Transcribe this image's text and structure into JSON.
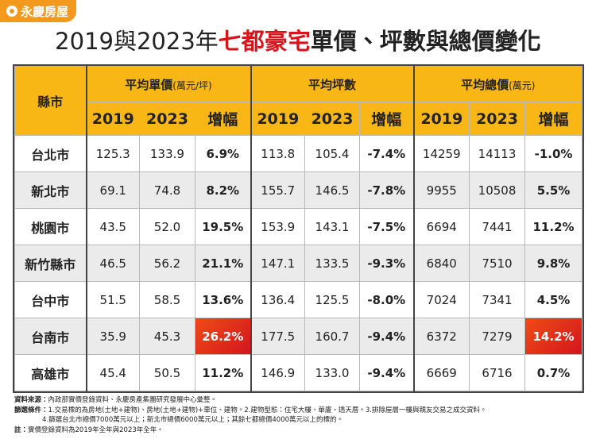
{
  "header": {
    "logo": "永慶房屋",
    "title": [
      "2019與2023年",
      "七都豪宅",
      "單價、坪數與總價變化"
    ]
  },
  "table": {
    "corner": "縣市",
    "groups": [
      {
        "name": "平均單價",
        "unit": "(萬元/坪)"
      },
      {
        "name": "平均坪數"
      },
      {
        "name": "平均總價",
        "unit": "(萬元)"
      }
    ],
    "subheaders": [
      "2019",
      "2023",
      "增幅",
      "2019",
      "2023",
      "增幅",
      "2019",
      "2023",
      "增幅"
    ],
    "rows": [
      {
        "city": "台北市",
        "values": [
          "125.3",
          "133.9",
          "6.9%",
          "113.8",
          "105.4",
          "-7.4%",
          "14259",
          "14113",
          "-1.0%"
        ]
      },
      {
        "city": "新北市",
        "values": [
          "69.1",
          "74.8",
          "8.2%",
          "155.7",
          "146.5",
          "-7.8%",
          "9955",
          "10508",
          "5.5%"
        ]
      },
      {
        "city": "桃園市",
        "values": [
          "43.5",
          "52.0",
          "19.5%",
          "153.9",
          "143.1",
          "-7.5%",
          "6694",
          "7441",
          "11.2%"
        ]
      },
      {
        "city": "新竹縣市",
        "values": [
          "46.5",
          "56.2",
          "21.1%",
          "147.1",
          "133.5",
          "-9.3%",
          "6840",
          "7510",
          "9.8%"
        ]
      },
      {
        "city": "台中市",
        "values": [
          "51.5",
          "58.5",
          "13.6%",
          "136.4",
          "125.5",
          "-8.0%",
          "7024",
          "7341",
          "4.5%"
        ]
      },
      {
        "city": "台南市",
        "values": [
          "35.9",
          "45.3",
          "26.2%",
          "177.5",
          "160.7",
          "-9.4%",
          "6372",
          "7279",
          "14.2%"
        ]
      },
      {
        "city": "高雄市",
        "values": [
          "45.4",
          "50.5",
          "11.2%",
          "146.9",
          "133.0",
          "-9.4%",
          "6669",
          "6716",
          "0.7%"
        ]
      }
    ],
    "highlight": [
      {
        "row": 5,
        "col": 2
      },
      {
        "row": 5,
        "col": 8
      }
    ]
  },
  "notes": [
    {
      "label": "資料來源：",
      "text": "內政部實價登錄資料、永慶房產集團研究發展中心彙整。"
    },
    {
      "label": "篩選條件：",
      "text": "1.交易標的為房地(土地+建物)、房地(土地+建物)+車位、建物。2.建物型態：住宅大樓、華廈、透天厝。3.排除屋層一樓與親友交易之成交資料。"
    },
    {
      "text": "4.篩選台北市總價7000萬元以上；新北市總價6000萬元以上；其餘七都總價4000萬元以上的標的。"
    },
    {
      "label": "註：",
      "text": "實價登錄資料為2019年全年與2023年全年。"
    }
  ]
}
